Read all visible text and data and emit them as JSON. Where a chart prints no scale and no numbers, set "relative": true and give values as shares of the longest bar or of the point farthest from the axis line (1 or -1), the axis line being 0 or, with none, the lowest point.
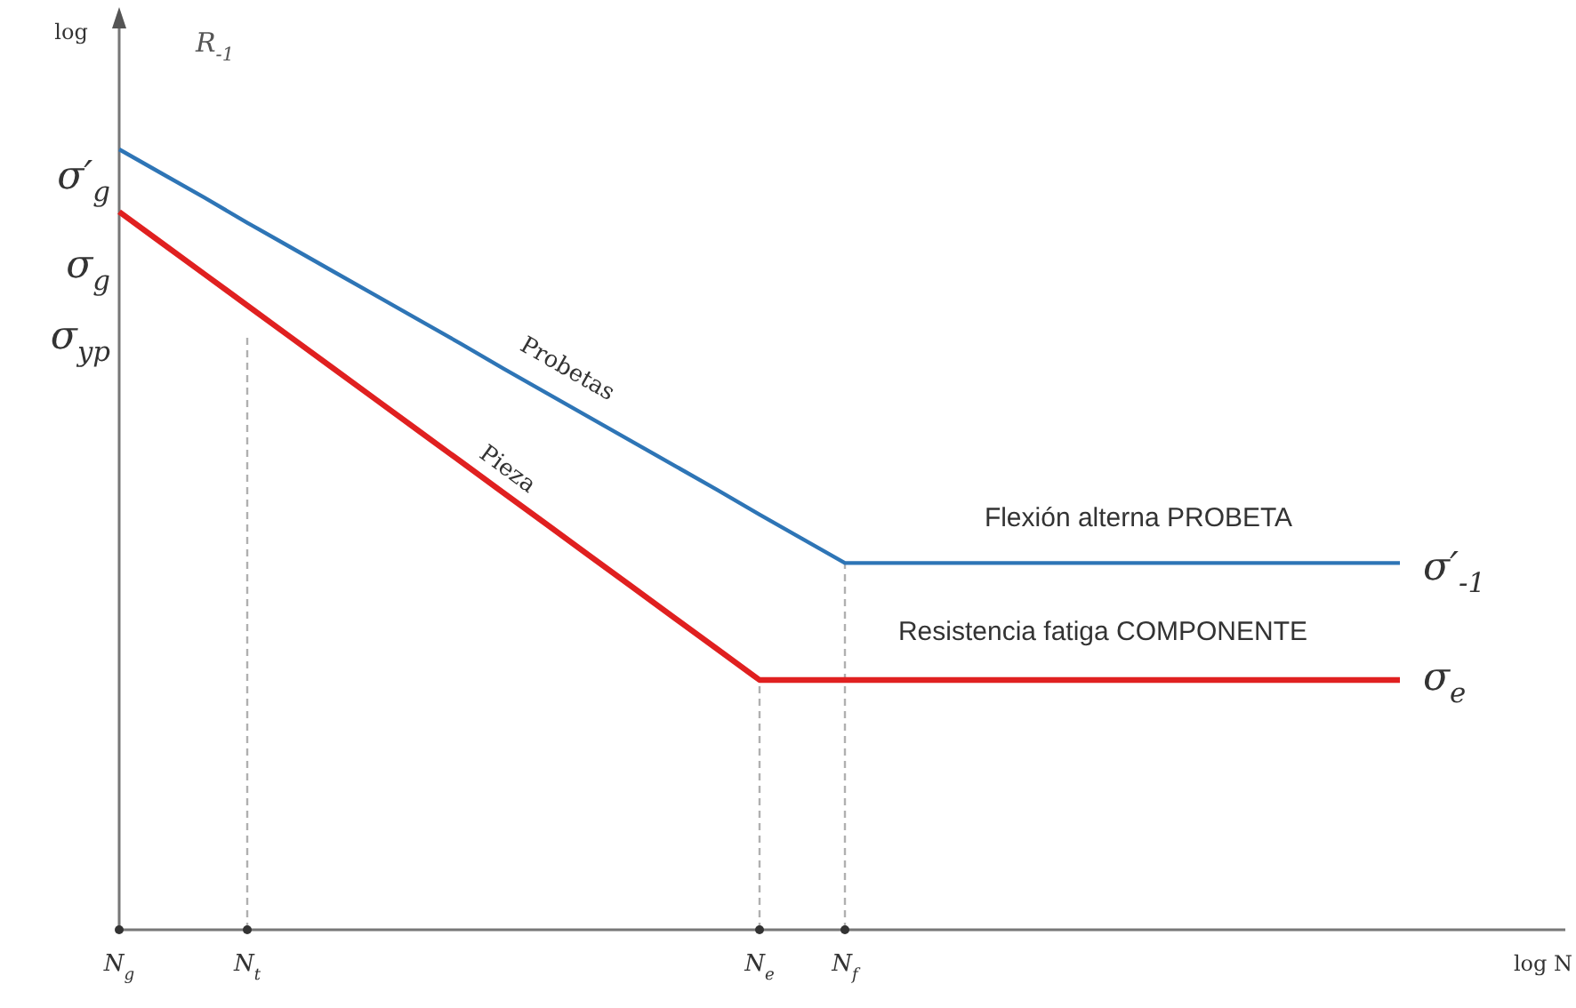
{
  "chart_data": {
    "type": "line",
    "relative": true,
    "xlabel": "log N",
    "ylabel": "log",
    "categories": [
      "N$_{g}$",
      null,
      null,
      "N$_{t}$",
      null,
      null,
      null,
      null,
      null,
      null,
      null,
      null,
      null,
      null,
      null,
      "N$_{e}$",
      null,
      "N$_{f}$",
      null,
      null,
      null,
      null,
      null,
      null,
      null,
      null,
      null,
      null,
      null,
      null,
      null,
      null,
      null,
      null,
      null
    ],
    "series": [
      {
        "name": "Probetas",
        "color": "#2e75b6",
        "values": [
          1,
          0.969,
          0.938,
          0.906,
          0.875,
          0.844,
          0.813,
          0.782,
          0.751,
          0.719,
          0.688,
          0.657,
          0.626,
          0.595,
          0.564,
          0.532,
          0.501,
          0.47,
          0.47,
          0.47,
          0.47,
          0.47,
          0.47,
          0.47,
          0.47,
          0.47,
          0.47,
          0.47,
          0.47,
          0.47,
          0.47,
          null,
          null,
          null,
          null
        ]
      },
      {
        "name": "Pieza",
        "color": "#e02020",
        "values": [
          0.92,
          0.88,
          0.84,
          0.8,
          0.76,
          0.72,
          0.68,
          0.64,
          0.6,
          0.56,
          0.52,
          0.48,
          0.44,
          0.4,
          0.36,
          0.32,
          0.32,
          0.32,
          0.32,
          0.32,
          0.32,
          0.32,
          0.32,
          0.32,
          0.32,
          0.32,
          0.32,
          0.32,
          0.32,
          0.32,
          0.32,
          null,
          null,
          null,
          null
        ]
      }
    ],
    "ref_lines": [
      {
        "axis": "x",
        "value": "N$_{t}$",
        "color": "#b0b0b0",
        "line_style": "dashed"
      },
      {
        "axis": "x",
        "value": "N$_{e}$",
        "color": "#b0b0b0",
        "line_style": "dashed"
      },
      {
        "axis": "x",
        "value": "N$_{f}$",
        "color": "#b0b0b0",
        "line_style": "dashed"
      }
    ],
    "annotations": [
      "R$_{-1}$",
      "σ′$_{g}$",
      "σ$_{g}$",
      "σ$_{yp}$",
      "Flexión alterna PROBETA",
      "Resistencia fatiga COMPONENTE",
      "σ′$_{-1}$",
      "σ$_{e}$"
    ],
    "grid": false,
    "legend": false,
    "marker": "none",
    "line_style": "solid"
  }
}
